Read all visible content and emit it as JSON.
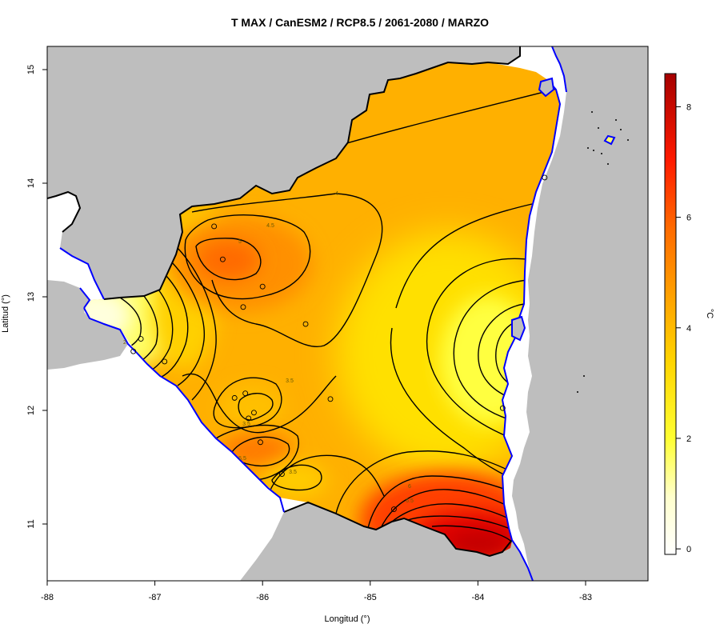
{
  "title": "T MAX / CanESM2 / RCP8.5 / 2061-2080 / MARZO",
  "xlabel": "Longitud (°)",
  "ylabel": "Latitud (°)",
  "x_ticks": [
    "-88",
    "-87",
    "-86",
    "-85",
    "-84",
    "-83"
  ],
  "y_ticks": [
    "11",
    "12",
    "13",
    "14",
    "15"
  ],
  "legend": {
    "unit": "°C",
    "ticks": [
      "0",
      "2",
      "4",
      "6",
      "8"
    ],
    "range": [
      -0.1,
      8.6
    ],
    "colors": [
      "#ffffff",
      "#ffff33",
      "#ffd500",
      "#ffa500",
      "#ff6a00",
      "#ff1a00",
      "#a50000"
    ]
  },
  "colors": {
    "land_outside": "#bebebe",
    "sea": "#ffffff",
    "coast": "#0000ff",
    "border": "#000000",
    "contour": "#000000"
  },
  "contour_labels": [
    "5",
    "4.5",
    "4",
    "3.5",
    "3.5",
    "5.5",
    "3.5",
    "6",
    "6.5",
    "2"
  ],
  "stations": [
    {
      "lon": -86.45,
      "lat": 13.62
    },
    {
      "lon": -86.37,
      "lat": 13.33
    },
    {
      "lon": -86.18,
      "lat": 12.91
    },
    {
      "lon": -86.0,
      "lat": 13.09
    },
    {
      "lon": -85.6,
      "lat": 12.76
    },
    {
      "lon": -87.13,
      "lat": 12.63
    },
    {
      "lon": -87.2,
      "lat": 12.52
    },
    {
      "lon": -86.91,
      "lat": 12.43
    },
    {
      "lon": -86.26,
      "lat": 12.11
    },
    {
      "lon": -86.16,
      "lat": 12.15
    },
    {
      "lon": -86.08,
      "lat": 11.98
    },
    {
      "lon": -86.13,
      "lat": 11.93
    },
    {
      "lon": -86.02,
      "lat": 11.72
    },
    {
      "lon": -85.82,
      "lat": 11.44
    },
    {
      "lon": -85.37,
      "lat": 12.1
    },
    {
      "lon": -84.78,
      "lat": 11.13
    },
    {
      "lon": -83.77,
      "lat": 12.02
    },
    {
      "lon": -83.38,
      "lat": 14.05
    }
  ]
}
